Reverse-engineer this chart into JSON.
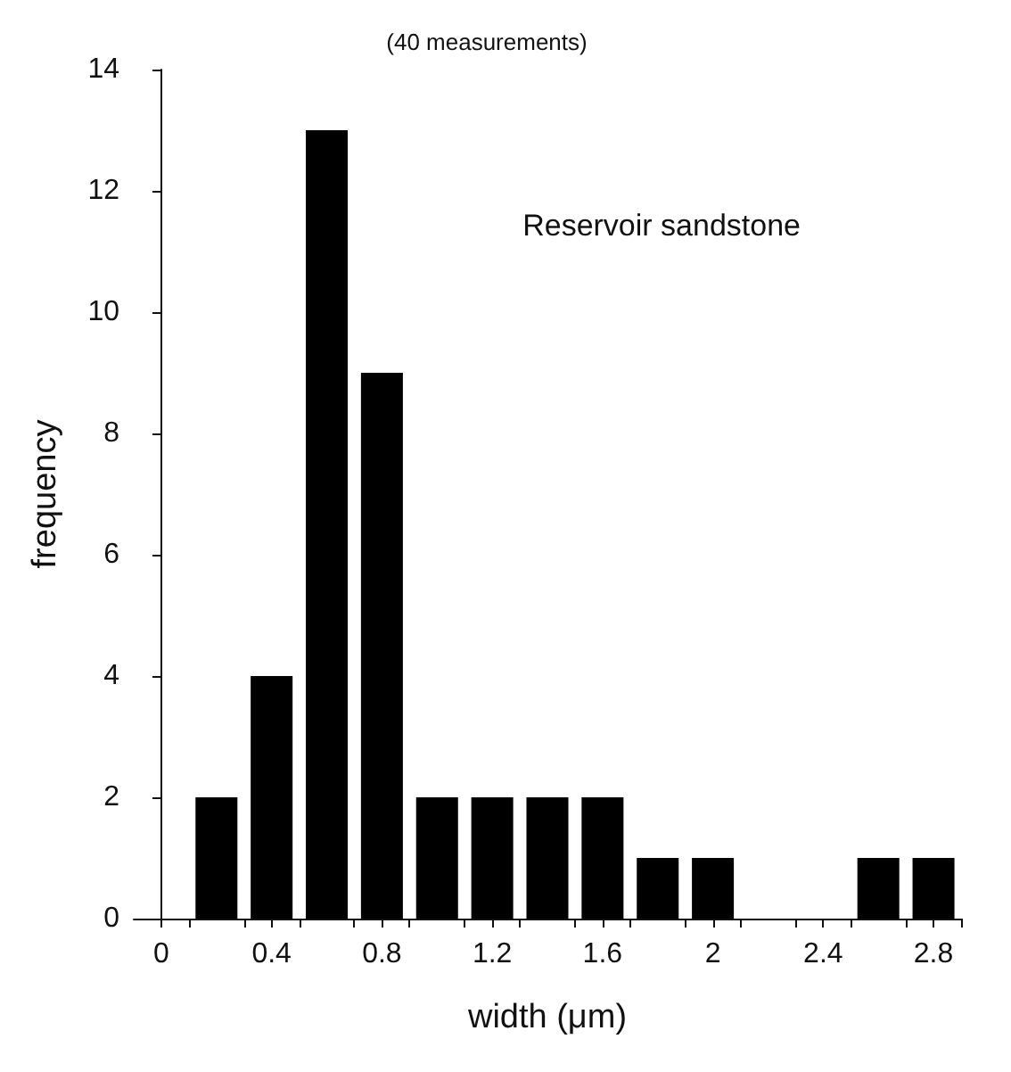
{
  "chart_data": {
    "type": "histogram",
    "title": "(40 measurements)",
    "xlabel": "width (μm)",
    "ylabel": "frequency",
    "annotations": [
      "Reservoir sandstone"
    ],
    "bins": [
      0.1,
      0.3,
      0.5,
      0.7,
      0.9,
      1.1,
      1.3,
      1.5,
      1.7,
      1.9,
      2.1,
      2.3,
      2.5,
      2.7,
      2.9
    ],
    "values": [
      2,
      4,
      13,
      9,
      2,
      2,
      2,
      2,
      1,
      1,
      0,
      0,
      1,
      1
    ],
    "color": "#000000",
    "xlim": [
      -0.1,
      2.9
    ],
    "xticks": [
      0,
      0.4,
      0.8,
      1.2,
      1.6,
      2,
      2.4,
      2.8,
      {
        "value": 0.1,
        "label": null
      },
      {
        "value": 0.3,
        "label": null
      },
      {
        "value": 0.5,
        "label": null
      },
      {
        "value": 0.7,
        "label": null
      },
      {
        "value": 0.9,
        "label": null
      },
      {
        "value": 1.1,
        "label": null
      },
      {
        "value": 1.3,
        "label": null
      },
      {
        "value": 1.5,
        "label": null
      },
      {
        "value": 1.7,
        "label": null
      },
      {
        "value": 1.9,
        "label": null
      },
      {
        "value": 2.1,
        "label": null
      },
      {
        "value": 2.3,
        "label": null
      },
      {
        "value": 2.5,
        "label": null
      },
      {
        "value": 2.7,
        "label": null
      },
      {
        "value": 2.9,
        "label": null
      }
    ],
    "ylim": [
      0,
      14
    ],
    "yticks": [
      0,
      2,
      4,
      6,
      8,
      10,
      12,
      14
    ],
    "grid": false
  }
}
